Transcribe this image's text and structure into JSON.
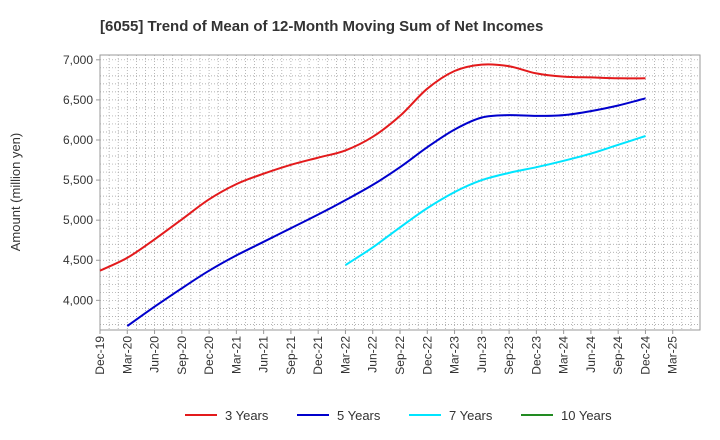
{
  "chart_data": {
    "type": "line",
    "title": "[6055]  Trend of Mean of 12-Month Moving Sum of Net Incomes",
    "ylabel": "Amount (million yen)",
    "xlabel": "",
    "x_ticks": [
      "Dec-19",
      "Mar-20",
      "Jun-20",
      "Sep-20",
      "Dec-20",
      "Mar-21",
      "Jun-21",
      "Sep-21",
      "Dec-21",
      "Mar-22",
      "Jun-22",
      "Sep-22",
      "Dec-22",
      "Mar-23",
      "Jun-23",
      "Sep-23",
      "Dec-23",
      "Mar-24",
      "Jun-24",
      "Sep-24",
      "Dec-24",
      "Mar-25"
    ],
    "y_ticks": [
      "4,000",
      "4,500",
      "5,000",
      "5,500",
      "6,000",
      "6,500",
      "7,000"
    ],
    "ylim": [
      3630,
      7060
    ],
    "grid": true,
    "legend_position": "bottom",
    "series": [
      {
        "name": "3 Years",
        "color": "#e31a1c",
        "points": [
          [
            "Dec-19",
            4370
          ],
          [
            "Mar-20",
            4530
          ],
          [
            "Jun-20",
            4760
          ],
          [
            "Sep-20",
            5010
          ],
          [
            "Dec-20",
            5260
          ],
          [
            "Mar-21",
            5450
          ],
          [
            "Jun-21",
            5580
          ],
          [
            "Sep-21",
            5690
          ],
          [
            "Dec-21",
            5780
          ],
          [
            "Mar-22",
            5870
          ],
          [
            "Jun-22",
            6040
          ],
          [
            "Sep-22",
            6300
          ],
          [
            "Dec-22",
            6640
          ],
          [
            "Mar-23",
            6860
          ],
          [
            "Jun-23",
            6940
          ],
          [
            "Sep-23",
            6920
          ],
          [
            "Dec-23",
            6830
          ],
          [
            "Mar-24",
            6790
          ],
          [
            "Jun-24",
            6780
          ],
          [
            "Sep-24",
            6770
          ],
          [
            "Dec-24",
            6770
          ]
        ]
      },
      {
        "name": "5 Years",
        "color": "#0000cc",
        "points": [
          [
            "Mar-20",
            3680
          ],
          [
            "Jun-20",
            3920
          ],
          [
            "Sep-20",
            4150
          ],
          [
            "Dec-20",
            4370
          ],
          [
            "Mar-21",
            4560
          ],
          [
            "Jun-21",
            4730
          ],
          [
            "Sep-21",
            4900
          ],
          [
            "Dec-21",
            5070
          ],
          [
            "Mar-22",
            5250
          ],
          [
            "Jun-22",
            5440
          ],
          [
            "Sep-22",
            5660
          ],
          [
            "Dec-22",
            5910
          ],
          [
            "Mar-23",
            6130
          ],
          [
            "Jun-23",
            6280
          ],
          [
            "Sep-23",
            6310
          ],
          [
            "Dec-23",
            6300
          ],
          [
            "Mar-24",
            6310
          ],
          [
            "Jun-24",
            6360
          ],
          [
            "Sep-24",
            6430
          ],
          [
            "Dec-24",
            6520
          ]
        ]
      },
      {
        "name": "7 Years",
        "color": "#00e5ff",
        "points": [
          [
            "Mar-22",
            4440
          ],
          [
            "Jun-22",
            4660
          ],
          [
            "Sep-22",
            4910
          ],
          [
            "Dec-22",
            5150
          ],
          [
            "Mar-23",
            5350
          ],
          [
            "Jun-23",
            5500
          ],
          [
            "Sep-23",
            5590
          ],
          [
            "Dec-23",
            5660
          ],
          [
            "Mar-24",
            5740
          ],
          [
            "Jun-24",
            5830
          ],
          [
            "Sep-24",
            5940
          ],
          [
            "Dec-24",
            6050
          ]
        ]
      },
      {
        "name": "10 Years",
        "color": "#228b22",
        "points": []
      }
    ]
  }
}
